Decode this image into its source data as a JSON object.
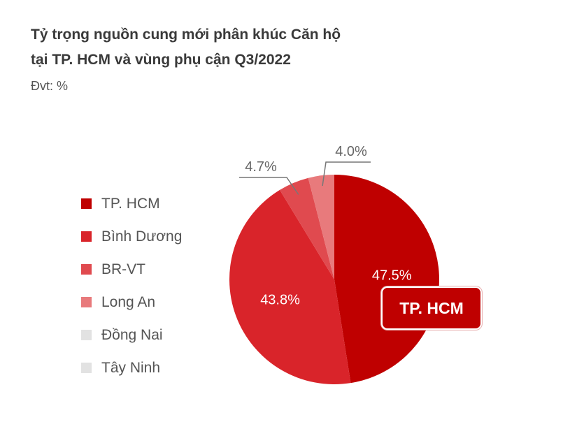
{
  "chart_data": {
    "type": "pie",
    "title": "Tỷ trọng nguồn cung mới phân khúc Căn hộ tại TP. HCM và vùng phụ cận Q3/2022",
    "title_lines": [
      "Tỷ trọng nguồn cung mới phân khúc Căn hộ",
      "tại TP. HCM và vùng phụ cận Q3/2022"
    ],
    "subtitle": "Đvt: %",
    "legend_position": "left",
    "slices": [
      {
        "label": "TP. HCM",
        "value": 47.5,
        "value_label": "47.5%",
        "color": "#bf0000"
      },
      {
        "label": "Bình Dương",
        "value": 43.8,
        "value_label": "43.8%",
        "color": "#d9242a"
      },
      {
        "label": "BR-VT",
        "value": 4.7,
        "value_label": "4.7%",
        "color": "#e04a4f"
      },
      {
        "label": "Long An",
        "value": 4.0,
        "value_label": "4.0%",
        "color": "#e87a7c"
      },
      {
        "label": "Đồng Nai",
        "value": 0,
        "color": "#e2e2e2"
      },
      {
        "label": "Tây Ninh",
        "value": 0,
        "color": "#e2e2e2"
      }
    ],
    "callout": "TP. HCM"
  }
}
